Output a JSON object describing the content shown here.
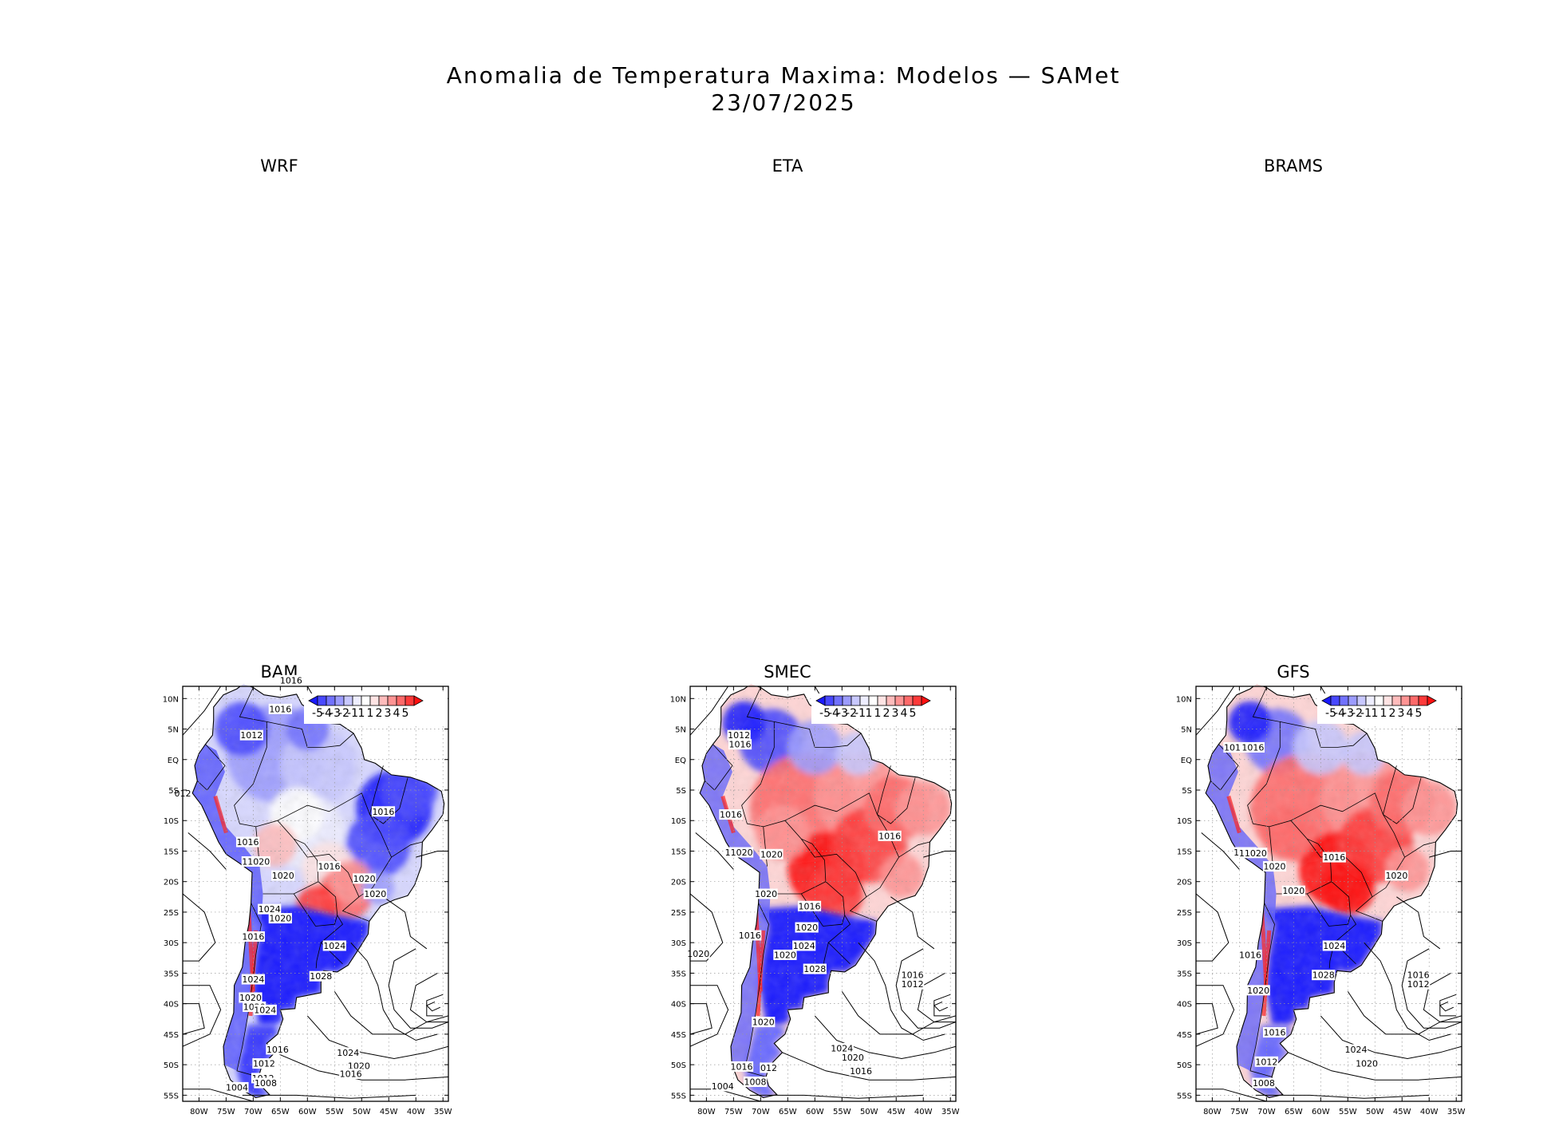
{
  "figure": {
    "title_line1": "Anomalia de Temperatura Maxima: Modelos — SAMet",
    "title_line2": "23/07/2025"
  },
  "top_panels": [
    {
      "title": "WRF"
    },
    {
      "title": "ETA"
    },
    {
      "title": "BRAMS"
    }
  ],
  "panels": [
    {
      "title": "BAM",
      "isobars": [
        {
          "text": "1016"
        },
        {
          "text": "1016"
        },
        {
          "text": "1012"
        },
        {
          "text": "012"
        },
        {
          "text": "1016"
        },
        {
          "text": "1016"
        },
        {
          "text": "11020"
        },
        {
          "text": "1020"
        },
        {
          "text": "1016"
        },
        {
          "text": "1020"
        },
        {
          "text": "1020"
        },
        {
          "text": "1024"
        },
        {
          "text": "1020"
        },
        {
          "text": "1016"
        },
        {
          "text": "1024"
        },
        {
          "text": "1028"
        },
        {
          "text": "1024"
        },
        {
          "text": "1020"
        },
        {
          "text": "1020"
        },
        {
          "text": "1024"
        },
        {
          "text": "1016"
        },
        {
          "text": "1012"
        },
        {
          "text": "1024"
        },
        {
          "text": "1020"
        },
        {
          "text": "1016"
        },
        {
          "text": "1012"
        },
        {
          "text": "1004"
        },
        {
          "text": "1008"
        }
      ],
      "anomaly_pattern": "blue north-center and northeast, red central-south Brazil and Andes, strong blue south"
    },
    {
      "title": "SMEC",
      "isobars": [
        {
          "text": "1012"
        },
        {
          "text": "1016"
        },
        {
          "text": "1016"
        },
        {
          "text": "1016"
        },
        {
          "text": "11020"
        },
        {
          "text": "1020"
        },
        {
          "text": "1020"
        },
        {
          "text": "1016"
        },
        {
          "text": "1020"
        },
        {
          "text": "1016"
        },
        {
          "text": "1020"
        },
        {
          "text": "1024"
        },
        {
          "text": "1020"
        },
        {
          "text": "1028"
        },
        {
          "text": "1016"
        },
        {
          "text": "1012"
        },
        {
          "text": "1020"
        },
        {
          "text": "1024"
        },
        {
          "text": "1020"
        },
        {
          "text": "1016"
        },
        {
          "text": "1016"
        },
        {
          "text": "012"
        },
        {
          "text": "1004"
        },
        {
          "text": "1008"
        }
      ],
      "anomaly_pattern": "red central and northern Brazil, blue northwest and south"
    },
    {
      "title": "GFS",
      "isobars": [
        {
          "text": "1016"
        },
        {
          "text": "101"
        },
        {
          "text": "1016"
        },
        {
          "text": "11020"
        },
        {
          "text": "1020"
        },
        {
          "text": "1016"
        },
        {
          "text": "1020"
        },
        {
          "text": "1020"
        },
        {
          "text": "1024"
        },
        {
          "text": "1028"
        },
        {
          "text": "1016"
        },
        {
          "text": "1020"
        },
        {
          "text": "1016"
        },
        {
          "text": "1012"
        },
        {
          "text": "1024"
        },
        {
          "text": "1020"
        },
        {
          "text": "1016"
        },
        {
          "text": "1012"
        },
        {
          "text": "1008"
        }
      ],
      "anomaly_pattern": "red central and northern Brazil, blue northwest and south"
    }
  ],
  "axes": {
    "lat_ticks": [
      "10N",
      "5N",
      "EQ",
      "5S",
      "10S",
      "15S",
      "20S",
      "25S",
      "30S",
      "35S",
      "40S",
      "45S",
      "50S",
      "55S"
    ],
    "lon_ticks": [
      "80W",
      "75W",
      "70W",
      "65W",
      "60W",
      "55W",
      "50W",
      "45W",
      "40W",
      "35W"
    ],
    "lat_range": [
      -56,
      12
    ],
    "lon_range": [
      -83,
      -34
    ],
    "grid": "dotted"
  },
  "colorbar": {
    "labels": [
      "-5",
      "-4",
      "-3",
      "-2",
      "-1",
      "1",
      "1",
      "2",
      "3",
      "4",
      "5"
    ],
    "colors": [
      "#1a1aff",
      "#4848ff",
      "#7272ff",
      "#9c9cff",
      "#c8c8ff",
      "#eeeeff",
      "#ffffff",
      "#ffe4e4",
      "#ffbcbc",
      "#ff9494",
      "#ff6a6a",
      "#ff3a3a",
      "#ff1010"
    ]
  }
}
